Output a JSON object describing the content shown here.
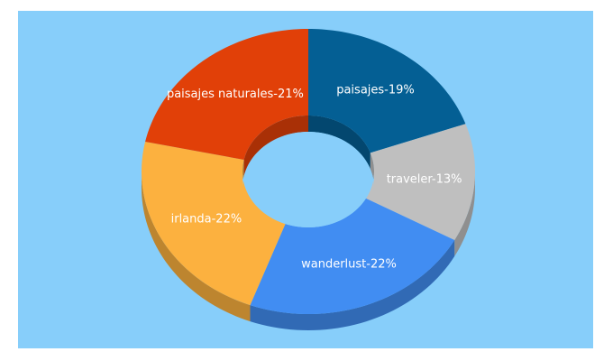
{
  "chart_data": {
    "type": "pie",
    "style": "3d-donut",
    "slices": [
      {
        "label": "paisajes-19%",
        "name": "paisajes",
        "value": 19,
        "color": "#045f94",
        "side_color": "#03476f"
      },
      {
        "label": "traveler-13%",
        "name": "traveler",
        "value": 13,
        "color": "#bfbfbf",
        "side_color": "#8f8f8f"
      },
      {
        "label": "wanderlust-22%",
        "name": "wanderlust",
        "value": 22,
        "color": "#418df2",
        "side_color": "#316ab5"
      },
      {
        "label": "irlanda-22%",
        "name": "irlanda",
        "value": 22,
        "color": "#fcb13f",
        "side_color": "#bd852f"
      },
      {
        "label": "paisajes naturales-21%",
        "name": "paisajes naturales",
        "value": 21,
        "color": "#e14008",
        "side_color": "#a93006"
      }
    ],
    "background": "#87cefa"
  }
}
